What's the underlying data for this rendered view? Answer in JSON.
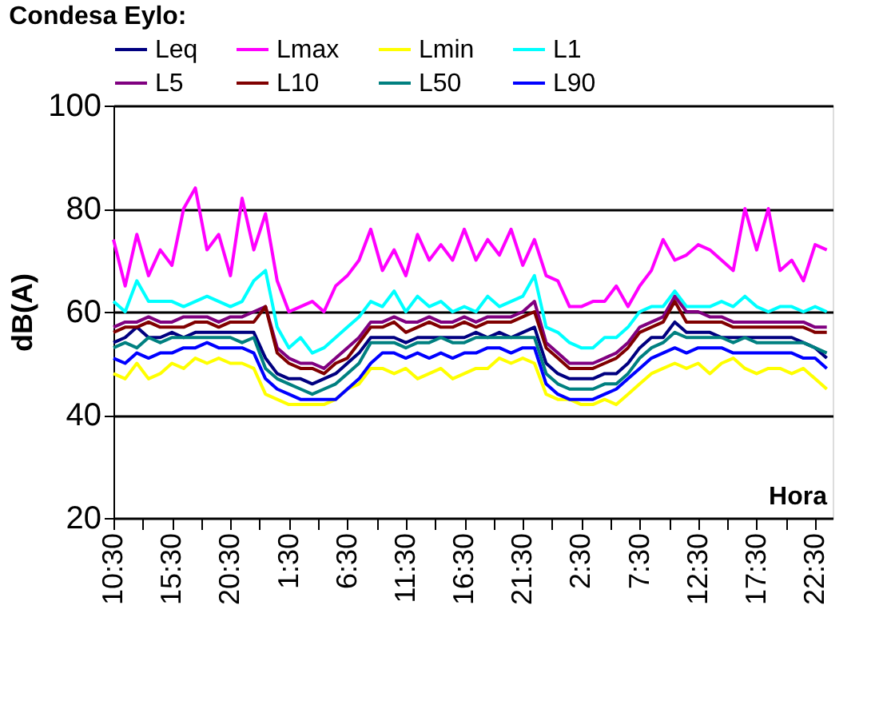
{
  "chart_data": {
    "type": "line",
    "title": "Condesa Eylo:",
    "xlabel": "Hora",
    "ylabel": "dB(A)",
    "categories": [
      "10:30",
      null,
      null,
      null,
      null,
      "15:30",
      null,
      null,
      null,
      null,
      "20:30",
      null,
      null,
      null,
      null,
      "1:30",
      null,
      null,
      null,
      null,
      "6:30",
      null,
      null,
      null,
      null,
      "11:30",
      null,
      null,
      null,
      null,
      "16:30",
      null,
      null,
      null,
      null,
      "21:30",
      null,
      null,
      null,
      null,
      "2:30",
      null,
      null,
      null,
      null,
      "7:30",
      null,
      null,
      null,
      null,
      "12:30",
      null,
      null,
      null,
      null,
      "17:30",
      null,
      null,
      null,
      null,
      "22:30",
      null
    ],
    "ylim": [
      20,
      100
    ],
    "yticks": [
      20,
      40,
      60,
      80,
      100
    ],
    "grid": "y",
    "legend": "top",
    "marker": "none",
    "line_style": "solid",
    "series": [
      {
        "name": "Leq",
        "color": "#000080",
        "values": [
          54,
          55,
          57,
          55,
          55,
          56,
          55,
          56,
          56,
          56,
          56,
          56,
          56,
          51,
          48,
          47,
          47,
          46,
          47,
          48,
          50,
          52,
          55,
          55,
          55,
          54,
          55,
          55,
          55,
          55,
          55,
          56,
          55,
          56,
          55,
          56,
          57,
          50,
          48,
          47,
          47,
          47,
          48,
          48,
          50,
          53,
          55,
          55,
          58,
          56,
          56,
          56,
          55,
          55,
          55,
          55,
          55,
          55,
          55,
          54,
          53,
          51
        ]
      },
      {
        "name": "Lmax",
        "color": "#ff00ff",
        "values": [
          74,
          65,
          75,
          67,
          72,
          69,
          80,
          84,
          72,
          75,
          67,
          82,
          72,
          79,
          66,
          60,
          61,
          62,
          60,
          65,
          67,
          70,
          76,
          68,
          72,
          67,
          75,
          70,
          73,
          70,
          76,
          70,
          74,
          71,
          76,
          69,
          74,
          67,
          66,
          61,
          61,
          62,
          62,
          65,
          61,
          65,
          68,
          74,
          70,
          71,
          73,
          72,
          70,
          68,
          80,
          72,
          80,
          68,
          70,
          66,
          73,
          72
        ]
      },
      {
        "name": "Lmin",
        "color": "#ffff00",
        "values": [
          48,
          47,
          50,
          47,
          48,
          50,
          49,
          51,
          50,
          51,
          50,
          50,
          49,
          44,
          43,
          42,
          42,
          42,
          42,
          43,
          45,
          46,
          49,
          49,
          48,
          49,
          47,
          48,
          49,
          47,
          48,
          49,
          49,
          51,
          50,
          51,
          50,
          44,
          43,
          43,
          42,
          42,
          43,
          42,
          44,
          46,
          48,
          49,
          50,
          49,
          50,
          48,
          50,
          51,
          49,
          48,
          49,
          49,
          48,
          49,
          47,
          45
        ]
      },
      {
        "name": "L1",
        "color": "#00ffff",
        "values": [
          62,
          60,
          66,
          62,
          62,
          62,
          61,
          62,
          63,
          62,
          61,
          62,
          66,
          68,
          57,
          53,
          55,
          52,
          53,
          55,
          57,
          59,
          62,
          61,
          64,
          60,
          63,
          61,
          62,
          60,
          61,
          60,
          63,
          61,
          62,
          63,
          67,
          57,
          56,
          54,
          53,
          53,
          55,
          55,
          57,
          60,
          61,
          61,
          64,
          61,
          61,
          61,
          62,
          61,
          63,
          61,
          60,
          61,
          61,
          60,
          61,
          60
        ]
      },
      {
        "name": "L5",
        "color": "#800080",
        "values": [
          57,
          58,
          58,
          59,
          58,
          58,
          59,
          59,
          59,
          58,
          59,
          59,
          60,
          61,
          53,
          51,
          50,
          50,
          49,
          51,
          53,
          55,
          58,
          58,
          59,
          58,
          58,
          59,
          58,
          58,
          59,
          58,
          59,
          59,
          59,
          60,
          62,
          54,
          52,
          50,
          50,
          50,
          51,
          52,
          54,
          57,
          58,
          59,
          63,
          60,
          60,
          59,
          59,
          58,
          58,
          58,
          58,
          58,
          58,
          58,
          57,
          57
        ]
      },
      {
        "name": "L10",
        "color": "#800000",
        "values": [
          56,
          57,
          57,
          58,
          57,
          57,
          57,
          58,
          58,
          57,
          58,
          58,
          58,
          61,
          52,
          50,
          49,
          49,
          48,
          50,
          51,
          54,
          57,
          57,
          58,
          56,
          57,
          58,
          57,
          57,
          58,
          57,
          58,
          58,
          58,
          59,
          60,
          53,
          51,
          49,
          49,
          49,
          50,
          51,
          53,
          56,
          57,
          58,
          62,
          58,
          58,
          58,
          58,
          57,
          57,
          57,
          57,
          57,
          57,
          57,
          56,
          56
        ]
      },
      {
        "name": "L50",
        "color": "#008080",
        "values": [
          53,
          54,
          53,
          55,
          54,
          55,
          55,
          55,
          55,
          55,
          55,
          54,
          55,
          49,
          47,
          46,
          45,
          44,
          45,
          46,
          48,
          50,
          54,
          54,
          54,
          53,
          54,
          54,
          55,
          54,
          54,
          55,
          55,
          55,
          55,
          55,
          55,
          48,
          46,
          45,
          45,
          45,
          46,
          46,
          48,
          51,
          53,
          54,
          56,
          55,
          55,
          55,
          55,
          54,
          55,
          54,
          54,
          54,
          54,
          54,
          53,
          52
        ]
      },
      {
        "name": "L90",
        "color": "#0000ff",
        "values": [
          51,
          50,
          52,
          51,
          52,
          52,
          53,
          53,
          54,
          53,
          53,
          53,
          52,
          47,
          45,
          44,
          43,
          43,
          43,
          43,
          45,
          47,
          50,
          52,
          52,
          51,
          52,
          51,
          52,
          51,
          52,
          52,
          53,
          53,
          52,
          53,
          53,
          46,
          44,
          43,
          43,
          43,
          44,
          45,
          47,
          49,
          51,
          52,
          53,
          52,
          53,
          53,
          53,
          52,
          52,
          52,
          52,
          52,
          52,
          51,
          51,
          49
        ]
      }
    ]
  }
}
